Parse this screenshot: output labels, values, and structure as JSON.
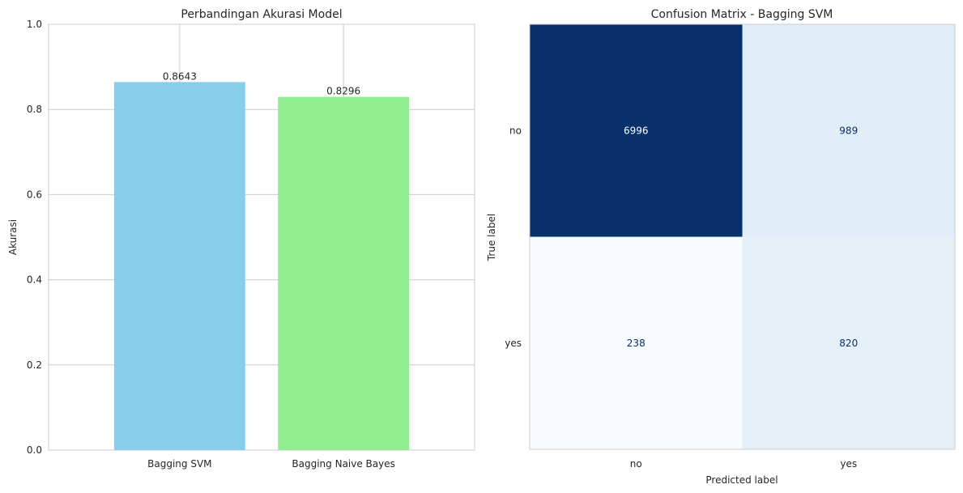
{
  "chart_data": [
    {
      "type": "bar",
      "title": "Perbandingan Akurasi Model",
      "xlabel": "",
      "ylabel": "Akurasi",
      "ylim": [
        0,
        1.0
      ],
      "yticks": [
        "0.0",
        "0.2",
        "0.4",
        "0.6",
        "0.8",
        "1.0"
      ],
      "categories": [
        "Bagging SVM",
        "Bagging Naive Bayes"
      ],
      "values": [
        0.8643,
        0.8296
      ],
      "data_labels": [
        "0.8643",
        "0.8296"
      ],
      "colors": [
        "#87ceeb",
        "#90ee90"
      ],
      "grid": true
    },
    {
      "type": "heatmap",
      "title": "Confusion Matrix - Bagging SVM",
      "xlabel": "Predicted label",
      "ylabel": "True label",
      "x_categories": [
        "no",
        "yes"
      ],
      "y_categories": [
        "no",
        "yes"
      ],
      "matrix": [
        [
          6996,
          989
        ],
        [
          238,
          820
        ]
      ],
      "cell_labels": [
        [
          "6996",
          "989"
        ],
        [
          "238",
          "820"
        ]
      ],
      "colormap": "Blues",
      "colors": {
        "max": "#08306b",
        "low": "#f7fbff",
        "mid_light": "#e0ebf6",
        "text_dark": "#08306b",
        "text_light": "#ffffff"
      }
    }
  ]
}
